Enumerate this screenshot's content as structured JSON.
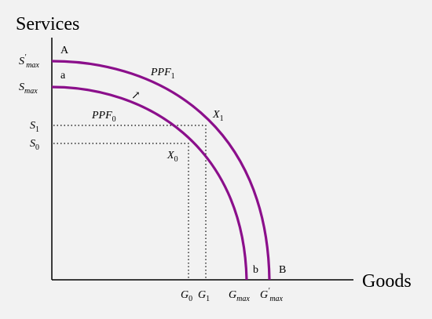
{
  "axes": {
    "y_title": "Services",
    "x_title": "Goods"
  },
  "y_labels": {
    "smax_prime": {
      "base": "S",
      "prime": "′",
      "sub": "max"
    },
    "smax": {
      "base": "S",
      "sub": "max"
    },
    "s1": {
      "base": "S",
      "sub": "1"
    },
    "s0": {
      "base": "S",
      "sub": "0"
    }
  },
  "x_labels": {
    "g0": {
      "base": "G",
      "sub": "0"
    },
    "g1": {
      "base": "G",
      "sub": "1"
    },
    "gmax": {
      "base": "G",
      "sub": "max"
    },
    "gmax_prime": {
      "base": "G",
      "prime": "′",
      "sub": "max"
    }
  },
  "curves": {
    "ppf1": {
      "base": "PPF",
      "sub": "1"
    },
    "ppf0": {
      "base": "PPF",
      "sub": "0"
    },
    "color": "#8b0f8b"
  },
  "points": {
    "A": "A",
    "a": "a",
    "b": "b",
    "B": "B",
    "x1": {
      "base": "X",
      "sub": "1"
    },
    "x0": {
      "base": "X",
      "sub": "0"
    }
  },
  "shift_arrow": "↗"
}
